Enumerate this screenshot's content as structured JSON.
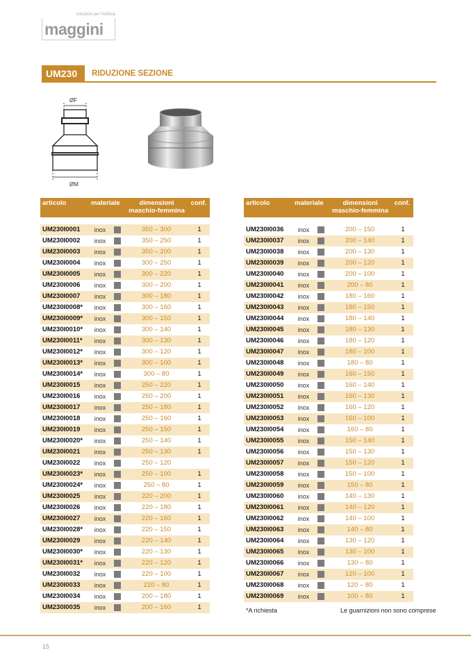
{
  "logo": {
    "tagline": "soluzioni per l'edilizia",
    "word": "maggini"
  },
  "title": {
    "code": "UM230",
    "name": "RIDUZIONE SEZIONE"
  },
  "diagram": {
    "label_f": "ØF",
    "label_m": "ØM"
  },
  "table_headers": {
    "articolo": "articolo",
    "materiale": "materiale",
    "dim1": "dimensioni",
    "dim2": "maschio-femmina",
    "conf": "conf."
  },
  "swatch_color": "#7c7c7c",
  "accent": "#c98a2c",
  "left_rows": [
    [
      "UM230I0001",
      "inox",
      "350 – 300",
      "1"
    ],
    [
      "UM230I0002",
      "inox",
      "350 – 250",
      "1"
    ],
    [
      "UM230I0003",
      "inox",
      "350 – 200",
      "1"
    ],
    [
      "UM230I0004",
      "inox",
      "300 – 250",
      "1"
    ],
    [
      "UM230I0005",
      "inox",
      "300 – 220",
      "1"
    ],
    [
      "UM230I0006",
      "inox",
      "300 – 200",
      "1"
    ],
    [
      "UM230I0007",
      "inox",
      "300 – 180",
      "1"
    ],
    [
      "UM230I0008*",
      "inox",
      "300 – 160",
      "1"
    ],
    [
      "UM230I0009*",
      "inox",
      "300 – 150",
      "1"
    ],
    [
      "UM230I0010*",
      "inox",
      "300 – 140",
      "1"
    ],
    [
      "UM230I0011*",
      "inox",
      "300 – 130",
      "1"
    ],
    [
      "UM230I0012*",
      "inox",
      "300 – 120",
      "1"
    ],
    [
      "UM230I0013*",
      "inox",
      "300 – 100",
      "1"
    ],
    [
      "UM230I0014*",
      "inox",
      "300 – 80",
      "1"
    ],
    [
      "UM230I0015",
      "inox",
      "250 – 220",
      "1"
    ],
    [
      "UM230I0016",
      "inox",
      "250 – 200",
      "1"
    ],
    [
      "UM230I0017",
      "inox",
      "250 – 180",
      "1"
    ],
    [
      "UM230I0018",
      "inox",
      "250 – 160",
      "1"
    ],
    [
      "UM230I0019",
      "inox",
      "250 – 150",
      "1"
    ],
    [
      "UM230I0020*",
      "inox",
      "250 – 140",
      "1"
    ],
    [
      "UM230I0021",
      "inox",
      "250 – 130",
      "1"
    ],
    [
      "UM230I0022",
      "inox",
      "250 – 120",
      ""
    ],
    [
      "UM230I0023*",
      "inox",
      "250 – 100",
      "1"
    ],
    [
      "UM230I0024*",
      "inox",
      "250 – 80",
      "1"
    ],
    [
      "UM230I0025",
      "inox",
      "220 – 200",
      "1"
    ],
    [
      "UM230I0026",
      "inox",
      "220 – 180",
      "1"
    ],
    [
      "UM230I0027",
      "inox",
      "220 – 160",
      "1"
    ],
    [
      "UM230I0028*",
      "inox",
      "220 – 150",
      "1"
    ],
    [
      "UM230I0029",
      "inox",
      "220 – 140",
      "1"
    ],
    [
      "UM230I0030*",
      "inox",
      "220 – 130",
      "1"
    ],
    [
      "UM230I0031*",
      "inox",
      "220 – 120",
      "1"
    ],
    [
      "UM230I0032",
      "inox",
      "220 – 100",
      "1"
    ],
    [
      "UM230I0033",
      "inox",
      "220 – 80",
      "1"
    ],
    [
      "UM230I0034",
      "inox",
      "200 – 180",
      "1"
    ],
    [
      "UM230I0035",
      "inox",
      "200 – 160",
      "1"
    ]
  ],
  "right_rows": [
    [
      "UM230I0036",
      "inox",
      "200 – 150",
      "1"
    ],
    [
      "UM230I0037",
      "inox",
      "200 – 140",
      "1"
    ],
    [
      "UM230I0038",
      "inox",
      "200 – 130",
      "1"
    ],
    [
      "UM230I0039",
      "inox",
      "200 – 120",
      "1"
    ],
    [
      "UM230I0040",
      "inox",
      "200 – 100",
      "1"
    ],
    [
      "UM230I0041",
      "inox",
      "200 – 80",
      "1"
    ],
    [
      "UM230I0042",
      "inox",
      "180 – 160",
      "1"
    ],
    [
      "UM230I0043",
      "inox",
      "180 – 150",
      "1"
    ],
    [
      "UM230I0044",
      "inox",
      "180 – 140",
      "1"
    ],
    [
      "UM230I0045",
      "inox",
      "180 – 130",
      "1"
    ],
    [
      "UM230I0046",
      "inox",
      "180 – 120",
      "1"
    ],
    [
      "UM230I0047",
      "inox",
      "180 – 100",
      "1"
    ],
    [
      "UM230I0048",
      "inox",
      "180 – 80",
      "1"
    ],
    [
      "UM230I0049",
      "inox",
      "160 – 150",
      "1"
    ],
    [
      "UM230I0050",
      "inox",
      "160 – 140",
      "1"
    ],
    [
      "UM230I0051",
      "inox",
      "160 – 130",
      "1"
    ],
    [
      "UM230I0052",
      "inox",
      "160 – 120",
      "1"
    ],
    [
      "UM230I0053",
      "inox",
      "160 – 100",
      "1"
    ],
    [
      "UM230I0054",
      "inox",
      "160 – 80",
      "1"
    ],
    [
      "UM230I0055",
      "inox",
      "150 – 140",
      "1"
    ],
    [
      "UM230I0056",
      "inox",
      "150 – 130",
      "1"
    ],
    [
      "UM230I0057",
      "inox",
      "150 – 120",
      "1"
    ],
    [
      "UM230I0058",
      "inox",
      "150 – 100",
      "1"
    ],
    [
      "UM230I0059",
      "inox",
      "150 – 80",
      "1"
    ],
    [
      "UM230I0060",
      "inox",
      "140 – 130",
      "1"
    ],
    [
      "UM230I0061",
      "inox",
      "140 – 120",
      "1"
    ],
    [
      "UM230I0062",
      "inox",
      "140 – 100",
      "1"
    ],
    [
      "UM230I0063",
      "inox",
      "140 – 80",
      "1"
    ],
    [
      "UM230I0064",
      "inox",
      "130 – 120",
      "1"
    ],
    [
      "UM230I0065",
      "inox",
      "130 – 100",
      "1"
    ],
    [
      "UM230I0066",
      "inox",
      "130 – 80",
      "1"
    ],
    [
      "UM230I0067",
      "inox",
      "120 – 100",
      "1"
    ],
    [
      "UM230I0068",
      "inox",
      "120 – 80",
      "1"
    ],
    [
      "UM230I0069",
      "inox",
      "100 – 80",
      "1"
    ]
  ],
  "footnotes": {
    "left": "*A richiesta",
    "right": "Le guarnizioni non sono comprese"
  },
  "page_number": "15"
}
